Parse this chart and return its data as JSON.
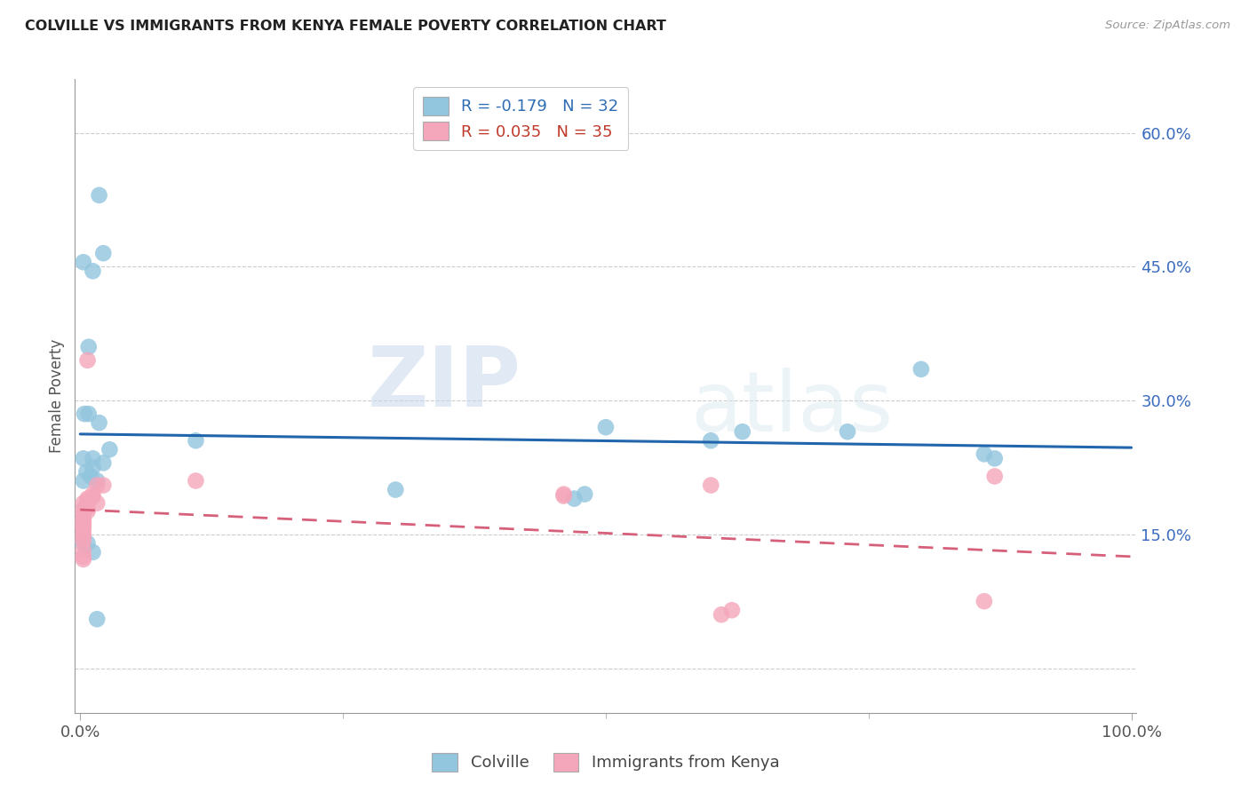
{
  "title": "COLVILLE VS IMMIGRANTS FROM KENYA FEMALE POVERTY CORRELATION CHART",
  "source": "Source: ZipAtlas.com",
  "ylabel": "Female Poverty",
  "ytick_vals": [
    0.0,
    0.15,
    0.3,
    0.45,
    0.6
  ],
  "ytick_labels": [
    "",
    "15.0%",
    "30.0%",
    "45.0%",
    "60.0%"
  ],
  "xlim": [
    -0.005,
    1.005
  ],
  "ylim": [
    -0.05,
    0.66
  ],
  "colville_r": "-0.179",
  "colville_n": "32",
  "kenya_r": "0.035",
  "kenya_n": "35",
  "colville_color": "#92c5de",
  "kenya_color": "#f4a6ba",
  "colville_line_color": "#2166ac",
  "kenya_line_color": "#d6607a",
  "watermark_zip": "ZIP",
  "watermark_atlas": "atlas",
  "legend_label_colville": "Colville",
  "legend_label_kenya": "Immigrants from Kenya",
  "colville_x": [
    0.008,
    0.018,
    0.003,
    0.012,
    0.022,
    0.008,
    0.003,
    0.006,
    0.01,
    0.028,
    0.022,
    0.012,
    0.016,
    0.012,
    0.018,
    0.11,
    0.3,
    0.47,
    0.48,
    0.5,
    0.6,
    0.63,
    0.73,
    0.8,
    0.86,
    0.87,
    0.003,
    0.007,
    0.012,
    0.016,
    0.003,
    0.004
  ],
  "colville_y": [
    0.285,
    0.53,
    0.455,
    0.445,
    0.465,
    0.36,
    0.235,
    0.22,
    0.215,
    0.245,
    0.23,
    0.225,
    0.21,
    0.235,
    0.275,
    0.255,
    0.2,
    0.19,
    0.195,
    0.27,
    0.255,
    0.265,
    0.265,
    0.335,
    0.24,
    0.235,
    0.14,
    0.14,
    0.13,
    0.055,
    0.21,
    0.285
  ],
  "kenya_x": [
    0.003,
    0.006,
    0.003,
    0.003,
    0.003,
    0.003,
    0.003,
    0.003,
    0.003,
    0.003,
    0.003,
    0.003,
    0.003,
    0.003,
    0.003,
    0.003,
    0.007,
    0.007,
    0.007,
    0.007,
    0.007,
    0.007,
    0.012,
    0.012,
    0.016,
    0.022,
    0.016,
    0.11,
    0.46,
    0.46,
    0.6,
    0.61,
    0.62,
    0.86,
    0.87
  ],
  "kenya_y": [
    0.185,
    0.18,
    0.178,
    0.173,
    0.168,
    0.165,
    0.162,
    0.16,
    0.158,
    0.155,
    0.15,
    0.147,
    0.142,
    0.132,
    0.125,
    0.122,
    0.19,
    0.188,
    0.185,
    0.18,
    0.176,
    0.345,
    0.195,
    0.192,
    0.185,
    0.205,
    0.205,
    0.21,
    0.195,
    0.193,
    0.205,
    0.06,
    0.065,
    0.075,
    0.215
  ]
}
